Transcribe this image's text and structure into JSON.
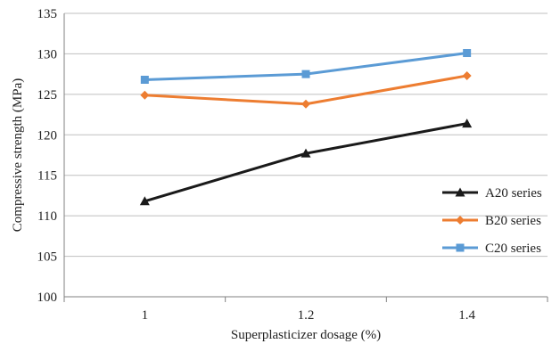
{
  "chart_data": {
    "type": "line",
    "title": "",
    "xlabel": "Superplasticizer dosage (%)",
    "ylabel": "Compressive strength (MPa)",
    "categories": [
      "1",
      "1.2",
      "1.4"
    ],
    "ylim": [
      100,
      135
    ],
    "yticks": [
      "100",
      "105",
      "110",
      "115",
      "120",
      "125",
      "130",
      "135"
    ],
    "grid": "horizontal",
    "legend_position": "right",
    "series": [
      {
        "name": "A20 series",
        "values": [
          111.8,
          117.7,
          121.4
        ],
        "color": "#1a1a1a",
        "marker": "triangle"
      },
      {
        "name": "B20 series",
        "values": [
          124.9,
          123.8,
          127.3
        ],
        "color": "#ed7d31",
        "marker": "diamond"
      },
      {
        "name": "C20 series",
        "values": [
          126.8,
          127.5,
          130.1
        ],
        "color": "#5b9bd5",
        "marker": "square"
      }
    ]
  }
}
